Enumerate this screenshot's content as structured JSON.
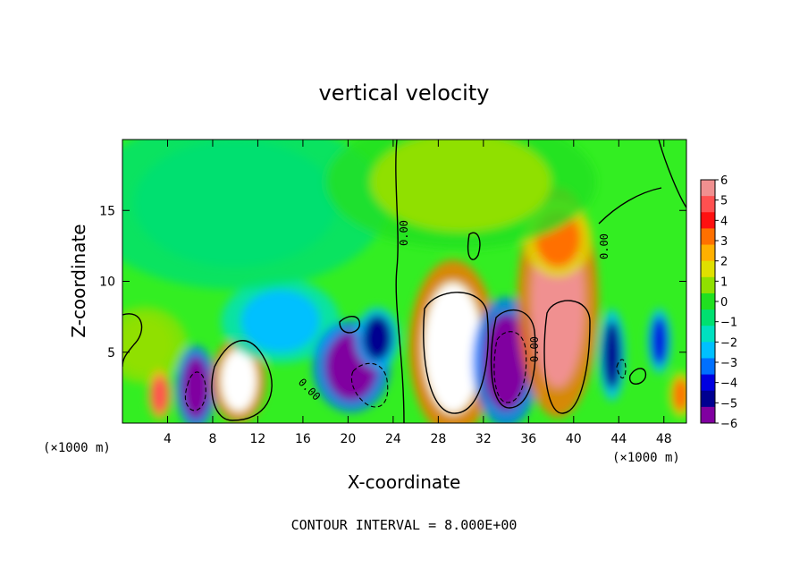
{
  "chart_data": {
    "type": "heatmap",
    "title": "vertical velocity",
    "xlabel": "X-coordinate",
    "ylabel": "Z-coordinate",
    "x_unit_label": "(×1000 m)",
    "xlim": [
      0,
      50
    ],
    "ylim": [
      0,
      20
    ],
    "x_ticks": [
      4,
      8,
      12,
      16,
      20,
      24,
      28,
      32,
      36,
      40,
      44,
      48
    ],
    "y_ticks": [
      5,
      10,
      15
    ],
    "colorbar": {
      "range": [
        -6,
        6
      ],
      "tick_values": [
        6,
        5,
        4,
        3,
        2,
        1,
        0,
        -1,
        -2,
        -3,
        -4,
        -5,
        -6
      ],
      "tick_labels": [
        "6",
        "5",
        "4",
        "3",
        "2",
        "1",
        "0",
        "−1",
        "−2",
        "−3",
        "−4",
        "−5",
        "−6"
      ],
      "colors": [
        "#f09090",
        "#ff5050",
        "#ff1010",
        "#ff7000",
        "#ffb000",
        "#e0e000",
        "#90e000",
        "#20e020",
        "#00e070",
        "#00e0c0",
        "#00c0ff",
        "#0070ff",
        "#0000e0",
        "#000090",
        "#8000a0"
      ]
    },
    "contour_labels": [
      "0.00",
      "0.00",
      "0.00",
      "0.00"
    ],
    "contour_interval_text": "CONTOUR INTERVAL = 8.000E+00",
    "cells": [
      {
        "x": 2,
        "z": 5.5,
        "w": 2.5,
        "h": 2.0,
        "v": 1.0
      },
      {
        "x": 3.3,
        "z": 2.0,
        "w": 0.7,
        "h": 1.3,
        "v": 4.5
      },
      {
        "x": 6.5,
        "z": 2.5,
        "w": 1.2,
        "h": 2.2,
        "v": -5.5
      },
      {
        "x": 10.3,
        "z": 3.0,
        "w": 1.6,
        "h": 2.2,
        "v": 6.5
      },
      {
        "x": 14.0,
        "z": 7.2,
        "w": 3.5,
        "h": 2.2,
        "v": -2.5
      },
      {
        "x": 20.3,
        "z": 4.0,
        "w": 2.3,
        "h": 2.4,
        "v": -5.5
      },
      {
        "x": 22.6,
        "z": 6.0,
        "w": 1.3,
        "h": 1.6,
        "v": -4.5
      },
      {
        "x": 29.3,
        "z": 5.3,
        "w": 2.6,
        "h": 4.6,
        "v": 6.5
      },
      {
        "x": 34.0,
        "z": 4.3,
        "w": 2.0,
        "h": 3.4,
        "v": -5.5
      },
      {
        "x": 38.6,
        "z": 8.5,
        "w": 2.4,
        "h": 6.0,
        "v": 5.5
      },
      {
        "x": 38.6,
        "z": 13.0,
        "w": 2.0,
        "h": 2.0,
        "v": 3.0
      },
      {
        "x": 43.4,
        "z": 4.8,
        "w": 0.8,
        "h": 2.4,
        "v": -5.0
      },
      {
        "x": 47.6,
        "z": 5.8,
        "w": 0.7,
        "h": 1.7,
        "v": -4.0
      },
      {
        "x": 49.5,
        "z": 2.0,
        "w": 0.7,
        "h": 1.2,
        "v": 3.5
      },
      {
        "x": 10.0,
        "z": 15.5,
        "w": 9.0,
        "h": 4.5,
        "v": -1.0
      },
      {
        "x": 30.0,
        "z": 17.0,
        "w": 8.0,
        "h": 3.5,
        "v": 0.5
      }
    ]
  }
}
